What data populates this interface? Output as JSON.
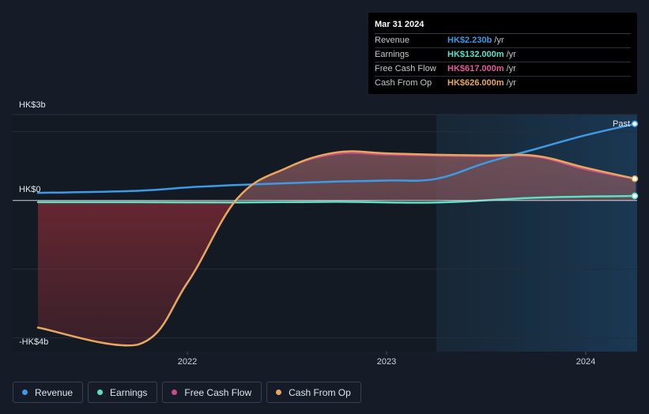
{
  "tooltip": {
    "date": "Mar 31 2024",
    "rows": [
      {
        "label": "Revenue",
        "value": "HK$2.230b",
        "unit": "/yr",
        "color": "#3d9ae6"
      },
      {
        "label": "Earnings",
        "value": "HK$132.000m",
        "unit": "/yr",
        "color": "#5ce0c6"
      },
      {
        "label": "Free Cash Flow",
        "value": "HK$617.000m",
        "unit": "/yr",
        "color": "#e05c9a"
      },
      {
        "label": "Cash From Op",
        "value": "HK$626.000m",
        "unit": "/yr",
        "color": "#e8a85c"
      }
    ]
  },
  "past_label": "Past",
  "legend": [
    {
      "label": "Revenue",
      "color": "#3d9ae6"
    },
    {
      "label": "Earnings",
      "color": "#5ce0c6"
    },
    {
      "label": "Free Cash Flow",
      "color": "#c84c8c"
    },
    {
      "label": "Cash From Op",
      "color": "#e8a85c"
    }
  ],
  "chart_data": {
    "type": "line",
    "y_axis_labels": [
      "HK$3b",
      "HK$0",
      "-HK$4b"
    ],
    "x_ticks": [
      2022,
      2023,
      2024
    ],
    "xlim": [
      2021.25,
      2024.25
    ],
    "ylim": [
      -4.4,
      2.5
    ],
    "units": "HK$ billions",
    "past_start": 2023.25,
    "series": [
      {
        "name": "Revenue",
        "color": "#3d9ae6",
        "x": [
          2021.25,
          2021.75,
          2022.0,
          2022.25,
          2022.75,
          2023.0,
          2023.25,
          2023.5,
          2023.75,
          2024.0,
          2024.25
        ],
        "y": [
          0.22,
          0.28,
          0.38,
          0.45,
          0.55,
          0.58,
          0.63,
          1.1,
          1.5,
          1.9,
          2.23
        ]
      },
      {
        "name": "Earnings",
        "color": "#5ce0c6",
        "x": [
          2021.25,
          2021.75,
          2022.25,
          2022.75,
          2023.25,
          2023.75,
          2024.25
        ],
        "y": [
          -0.05,
          -0.05,
          -0.06,
          -0.04,
          -0.06,
          0.08,
          0.13
        ]
      },
      {
        "name": "Free Cash Flow",
        "color": "#c84c8c",
        "x": [
          2021.25,
          2021.75,
          2022.0,
          2022.25,
          2022.5,
          2022.75,
          2023.0,
          2023.25,
          2023.5,
          2023.75,
          2024.0,
          2024.25
        ],
        "y": [
          -3.7,
          -4.2,
          -2.4,
          0.05,
          0.95,
          1.35,
          1.33,
          1.3,
          1.28,
          1.27,
          0.9,
          0.62
        ]
      },
      {
        "name": "Cash From Op",
        "color": "#e8a85c",
        "x": [
          2021.25,
          2021.75,
          2022.0,
          2022.25,
          2022.5,
          2022.75,
          2023.0,
          2023.25,
          2023.5,
          2023.75,
          2024.0,
          2024.25
        ],
        "y": [
          -3.7,
          -4.2,
          -2.4,
          0.05,
          0.95,
          1.4,
          1.37,
          1.33,
          1.31,
          1.3,
          0.95,
          0.63
        ]
      }
    ]
  }
}
